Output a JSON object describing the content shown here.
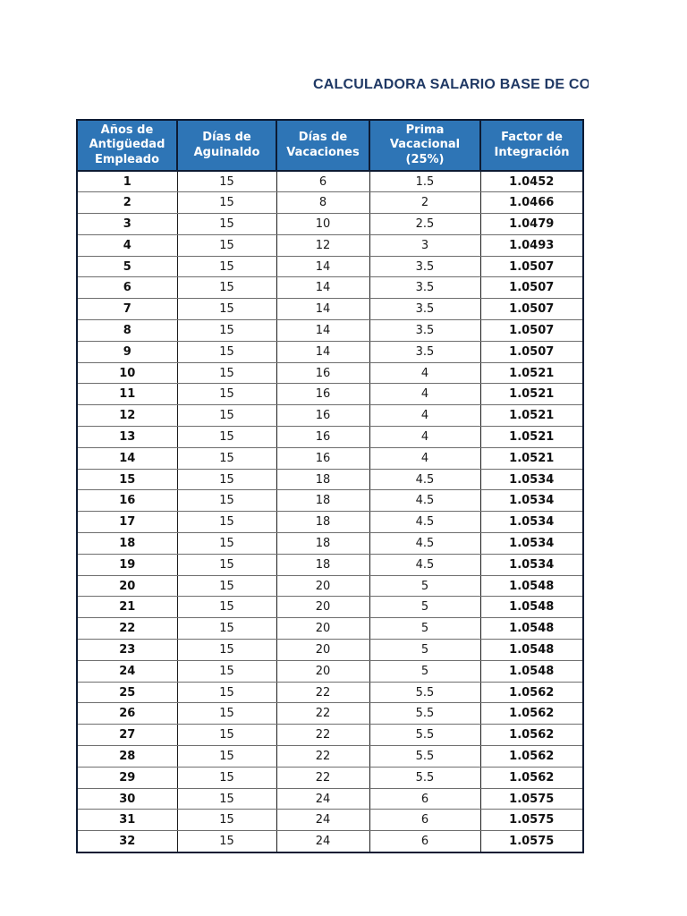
{
  "page": {
    "title": "CALCULADORA SALARIO BASE DE CO"
  },
  "colors": {
    "title_text": "#1F3864",
    "header_background": "#2E75B6",
    "header_text": "#FFFFFF",
    "table_border_dark": "#0D1B33",
    "row_divider_gray": "#6E6E6E",
    "body_text": "#1A1A1A",
    "page_background": "#FFFFFF"
  },
  "table": {
    "headers": [
      "Años de Antigüedad Empleado",
      "Días de Aguinaldo",
      "Días de Vacaciones",
      "Prima Vacacional (25%)",
      "Factor de Integración"
    ],
    "col_names": [
      "cell-anos-antiguedad",
      "cell-dias-aguinaldo",
      "cell-dias-vacaciones",
      "cell-prima-vacacional",
      "cell-factor-integracion"
    ],
    "rows": [
      [
        "1",
        "15",
        "6",
        "1.5",
        "1.0452"
      ],
      [
        "2",
        "15",
        "8",
        "2",
        "1.0466"
      ],
      [
        "3",
        "15",
        "10",
        "2.5",
        "1.0479"
      ],
      [
        "4",
        "15",
        "12",
        "3",
        "1.0493"
      ],
      [
        "5",
        "15",
        "14",
        "3.5",
        "1.0507"
      ],
      [
        "6",
        "15",
        "14",
        "3.5",
        "1.0507"
      ],
      [
        "7",
        "15",
        "14",
        "3.5",
        "1.0507"
      ],
      [
        "8",
        "15",
        "14",
        "3.5",
        "1.0507"
      ],
      [
        "9",
        "15",
        "14",
        "3.5",
        "1.0507"
      ],
      [
        "10",
        "15",
        "16",
        "4",
        "1.0521"
      ],
      [
        "11",
        "15",
        "16",
        "4",
        "1.0521"
      ],
      [
        "12",
        "15",
        "16",
        "4",
        "1.0521"
      ],
      [
        "13",
        "15",
        "16",
        "4",
        "1.0521"
      ],
      [
        "14",
        "15",
        "16",
        "4",
        "1.0521"
      ],
      [
        "15",
        "15",
        "18",
        "4.5",
        "1.0534"
      ],
      [
        "16",
        "15",
        "18",
        "4.5",
        "1.0534"
      ],
      [
        "17",
        "15",
        "18",
        "4.5",
        "1.0534"
      ],
      [
        "18",
        "15",
        "18",
        "4.5",
        "1.0534"
      ],
      [
        "19",
        "15",
        "18",
        "4.5",
        "1.0534"
      ],
      [
        "20",
        "15",
        "20",
        "5",
        "1.0548"
      ],
      [
        "21",
        "15",
        "20",
        "5",
        "1.0548"
      ],
      [
        "22",
        "15",
        "20",
        "5",
        "1.0548"
      ],
      [
        "23",
        "15",
        "20",
        "5",
        "1.0548"
      ],
      [
        "24",
        "15",
        "20",
        "5",
        "1.0548"
      ],
      [
        "25",
        "15",
        "22",
        "5.5",
        "1.0562"
      ],
      [
        "26",
        "15",
        "22",
        "5.5",
        "1.0562"
      ],
      [
        "27",
        "15",
        "22",
        "5.5",
        "1.0562"
      ],
      [
        "28",
        "15",
        "22",
        "5.5",
        "1.0562"
      ],
      [
        "29",
        "15",
        "22",
        "5.5",
        "1.0562"
      ],
      [
        "30",
        "15",
        "24",
        "6",
        "1.0575"
      ],
      [
        "31",
        "15",
        "24",
        "6",
        "1.0575"
      ],
      [
        "32",
        "15",
        "24",
        "6",
        "1.0575"
      ]
    ]
  }
}
